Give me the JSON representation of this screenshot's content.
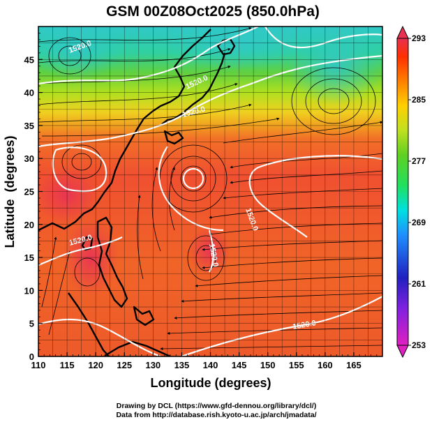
{
  "title": "GSM 00Z08Oct2025 (850.0hPa)",
  "chart_data": {
    "type": "heatmap",
    "title": "GSM 00Z08Oct2025 (850.0hPa)",
    "xlabel": "Longitude (degrees)",
    "ylabel": "Latitude  (degrees)",
    "xlim": [
      110,
      170
    ],
    "ylim": [
      0,
      50
    ],
    "x_ticks": [
      "110",
      "115",
      "120",
      "125",
      "130",
      "135",
      "140",
      "145",
      "150",
      "155",
      "160",
      "165"
    ],
    "y_ticks": [
      "0",
      "5",
      "10",
      "15",
      "20",
      "25",
      "30",
      "35",
      "40",
      "45"
    ],
    "colorbar": {
      "ticks": [
        "253",
        "261",
        "269",
        "277",
        "285",
        "293"
      ],
      "range": [
        253,
        293
      ],
      "colors": [
        "#e020c0",
        "#8020e0",
        "#2020c0",
        "#1e90ff",
        "#00e0e0",
        "#20e060",
        "#60d020",
        "#c0e020",
        "#ffd000",
        "#ff8000",
        "#ff3000",
        "#e83050"
      ]
    },
    "contour_labels": [
      "1520.0",
      "1520.0",
      "1520.0",
      "1520.0",
      "1520.0",
      "1520.0",
      "1520.0"
    ],
    "features": [
      {
        "kind": "low-center",
        "lon": 136.5,
        "lat": 29.5
      },
      {
        "kind": "circulation",
        "lon": 161,
        "lat": 40.5
      },
      {
        "kind": "circulation",
        "lon": 117,
        "lat": 30.5
      },
      {
        "kind": "circulation",
        "lon": 115,
        "lat": 45.5
      }
    ],
    "grid": true
  },
  "credits": {
    "line1": "Drawing by DCL (https://www.gfd-dennou.org/library/dcl/)",
    "line2": "Data from http://database.rish.kyoto-u.ac.jp/arch/jmadata/"
  },
  "colors": {
    "warm": "#f05a28",
    "cool": "#30c8a0",
    "frame": "#000000",
    "contour": "#ffffff"
  }
}
